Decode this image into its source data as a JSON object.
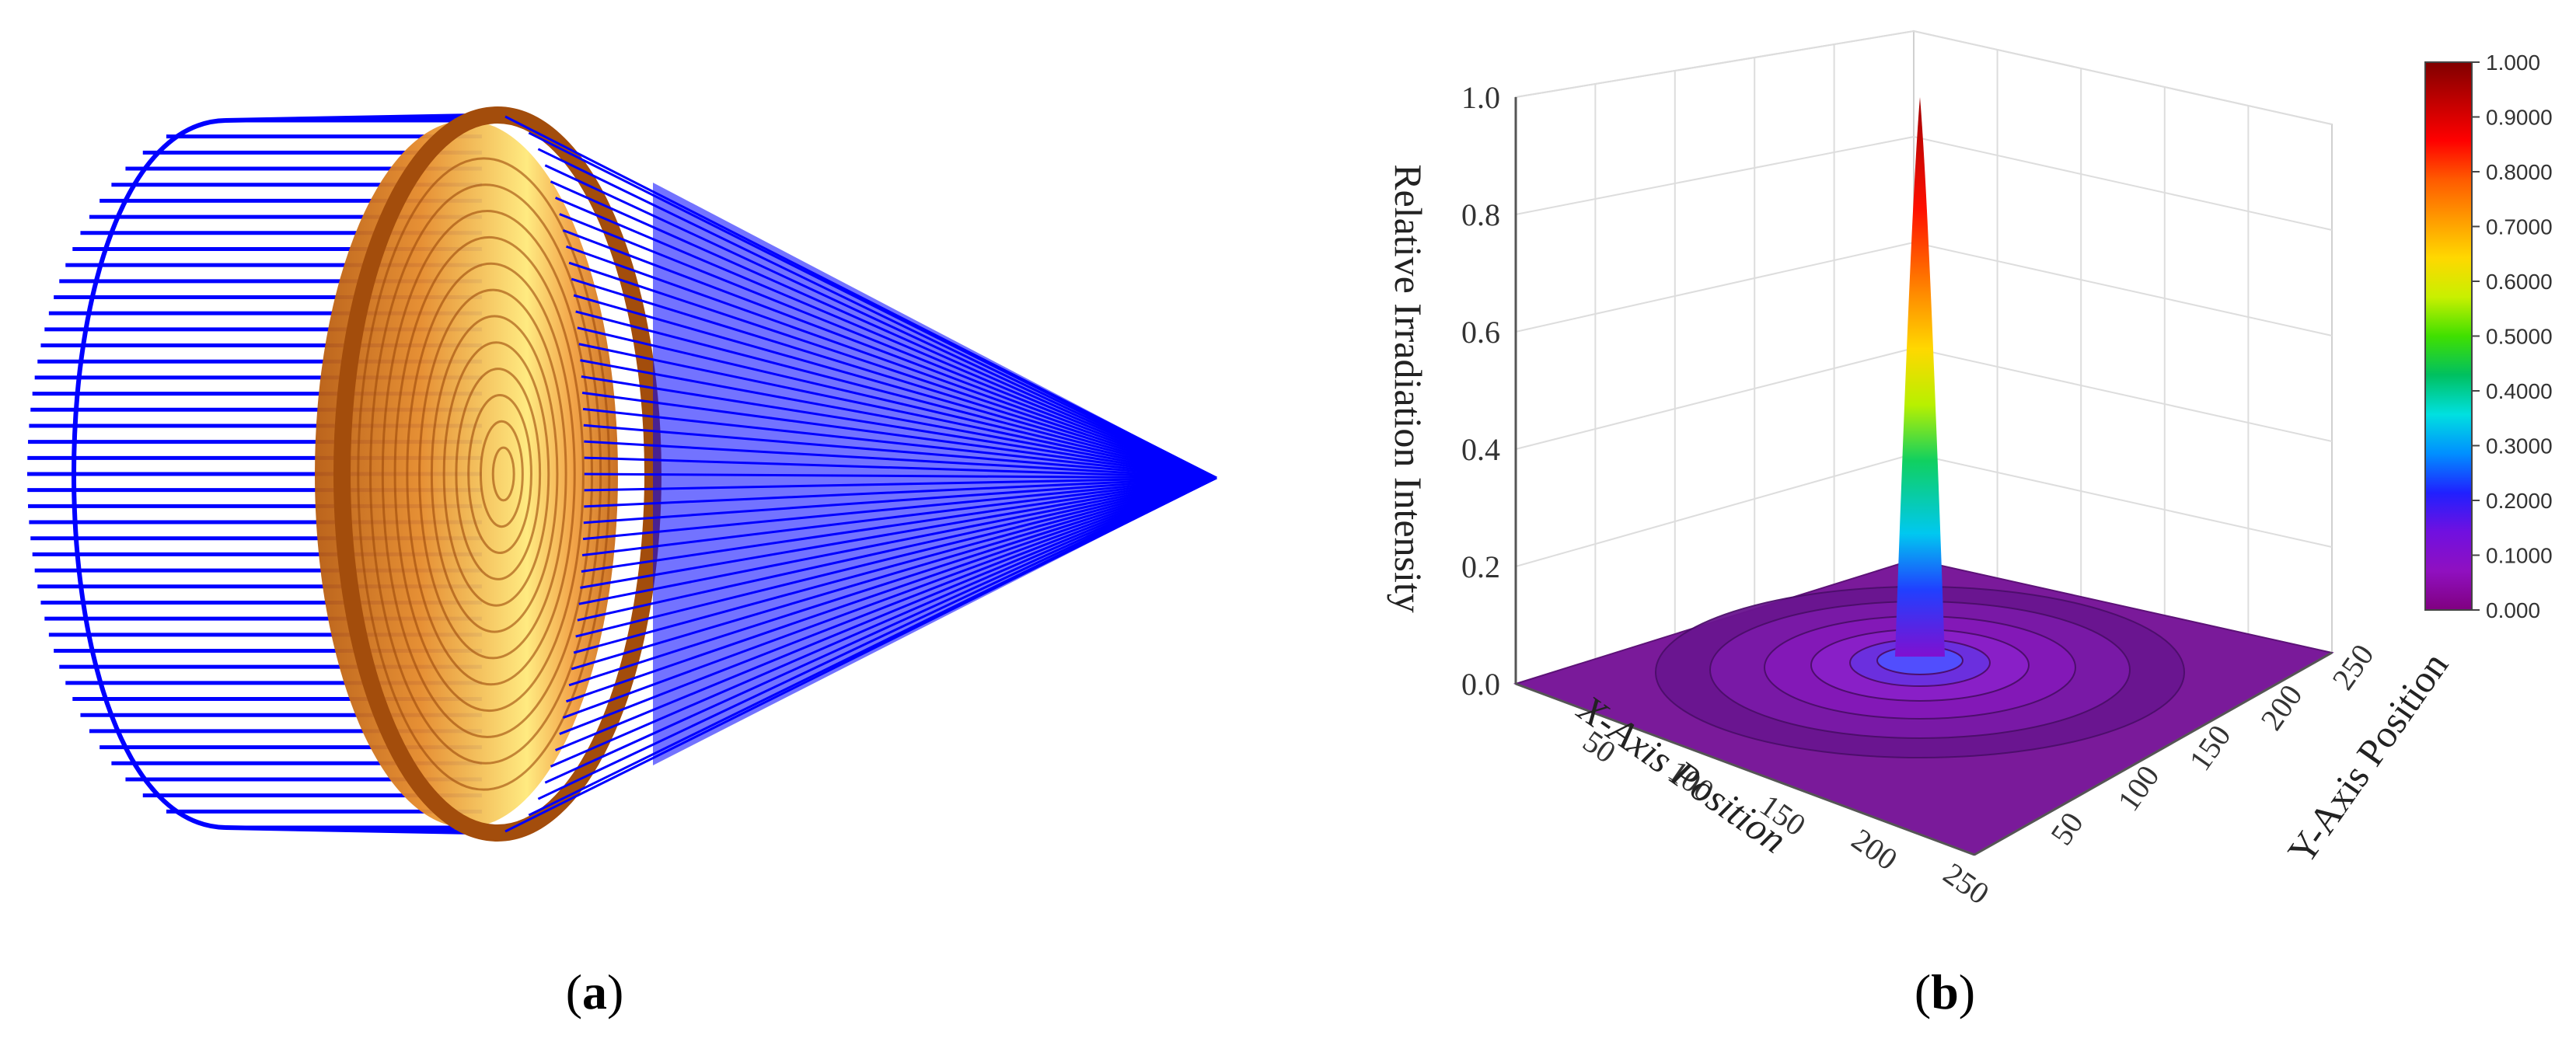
{
  "figure": {
    "caption_a": "a",
    "caption_b": "b"
  },
  "panel_a": {
    "ray_color": "#0000ff",
    "lens_color": "#d7771f",
    "lens_highlight": "#fff3a0"
  },
  "chart_data": {
    "type": "surface3d",
    "zlabel": "Relative Irradiation Intensity",
    "xlabel": "X-Axis Position",
    "ylabel": "Y-Axis Position",
    "z_ticks": [
      "0.0",
      "0.2",
      "0.4",
      "0.6",
      "0.8",
      "1.0"
    ],
    "x_ticks": [
      "50",
      "100",
      "150",
      "200",
      "250"
    ],
    "y_ticks": [
      "50",
      "100",
      "150",
      "200",
      "250"
    ],
    "zlim": [
      0,
      1
    ],
    "xlim": [
      0,
      250
    ],
    "ylim": [
      0,
      250
    ],
    "peak": {
      "x": 125,
      "y": 125,
      "z": 1.0
    },
    "grid": true,
    "colorbar": {
      "ticks": [
        "1.000",
        "0.9000",
        "0.8000",
        "0.7000",
        "0.6000",
        "0.5000",
        "0.4000",
        "0.3000",
        "0.2000",
        "0.1000",
        "0.000"
      ],
      "colors": [
        "#800000",
        "#c00000",
        "#ff0000",
        "#ff5a00",
        "#ff9a00",
        "#ffd800",
        "#c8f000",
        "#40e000",
        "#00c060",
        "#00e0e0",
        "#0090ff",
        "#2020ff",
        "#7010e0",
        "#9010c0",
        "#800080"
      ]
    }
  }
}
